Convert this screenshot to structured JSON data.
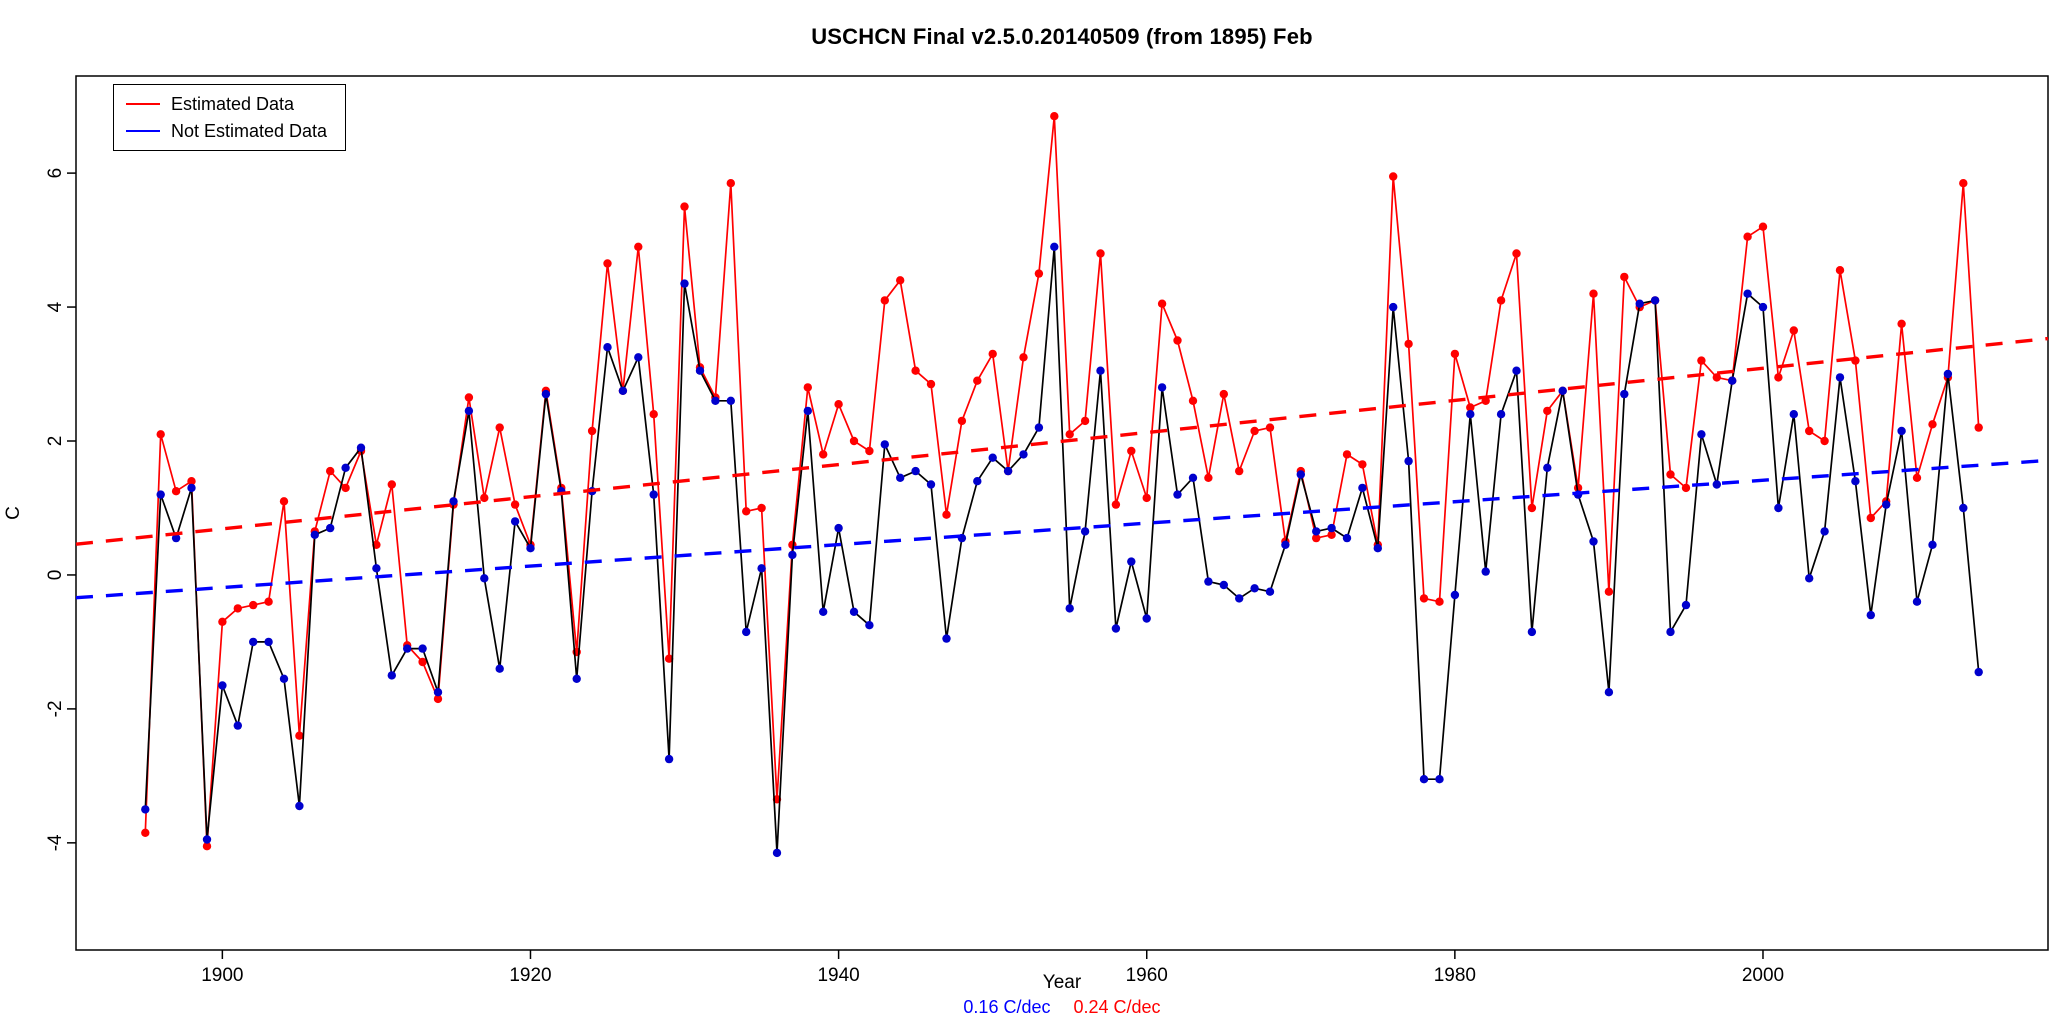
{
  "title": "USCHCN Final v2.5.0.20140509 (from 1895) Feb",
  "axes": {
    "xlabel": "Year",
    "ylabel": "C"
  },
  "legend": {
    "items": [
      {
        "label": "Estimated Data",
        "color": "#FF0000"
      },
      {
        "label": "Not Estimated Data",
        "color": "#0000FF"
      }
    ]
  },
  "annotation": {
    "not_estimated": "0.16 C/dec",
    "estimated": "0.24 C/dec",
    "not_estimated_color": "#0000FF",
    "estimated_color": "#FF0000"
  },
  "chart_data": {
    "type": "line",
    "title": "USCHCN Final v2.5.0.20140509 (from 1895) Feb",
    "xlabel": "Year",
    "ylabel": "C",
    "grid": false,
    "legend_position": "top-left",
    "xlim": [
      1890.5,
      2018.5
    ],
    "ylim": [
      -5.6,
      7.45
    ],
    "xticks": [
      1900,
      1920,
      1940,
      1960,
      1980,
      2000
    ],
    "yticks": [
      -4,
      -2,
      0,
      2,
      4,
      6
    ],
    "years": [
      1895,
      1896,
      1897,
      1898,
      1899,
      1900,
      1901,
      1902,
      1903,
      1904,
      1905,
      1906,
      1907,
      1908,
      1909,
      1910,
      1911,
      1912,
      1913,
      1914,
      1915,
      1916,
      1917,
      1918,
      1919,
      1920,
      1921,
      1922,
      1923,
      1924,
      1925,
      1926,
      1927,
      1928,
      1929,
      1930,
      1931,
      1932,
      1933,
      1934,
      1935,
      1936,
      1937,
      1938,
      1939,
      1940,
      1941,
      1942,
      1943,
      1944,
      1945,
      1946,
      1947,
      1948,
      1949,
      1950,
      1951,
      1952,
      1953,
      1954,
      1955,
      1956,
      1957,
      1958,
      1959,
      1960,
      1961,
      1962,
      1963,
      1964,
      1965,
      1966,
      1967,
      1968,
      1969,
      1970,
      1971,
      1972,
      1973,
      1974,
      1975,
      1976,
      1977,
      1978,
      1979,
      1980,
      1981,
      1982,
      1983,
      1984,
      1985,
      1986,
      1987,
      1988,
      1989,
      1990,
      1991,
      1992,
      1993,
      1994,
      1995,
      1996,
      1997,
      1998,
      1999,
      2000,
      2001,
      2002,
      2003,
      2004,
      2005,
      2006,
      2007,
      2008,
      2009,
      2010,
      2011,
      2012,
      2013,
      2014
    ],
    "series": [
      {
        "id": "estimated",
        "name": "Estimated Data",
        "line_color": "#FF0000",
        "marker_color": "#FF0000",
        "values": [
          -3.85,
          2.1,
          1.25,
          1.4,
          -4.05,
          -0.7,
          -0.5,
          -0.45,
          -0.4,
          1.1,
          -2.4,
          0.65,
          1.55,
          1.3,
          1.85,
          0.45,
          1.35,
          -1.05,
          -1.3,
          -1.85,
          1.05,
          2.65,
          1.15,
          2.2,
          1.05,
          0.45,
          2.75,
          1.3,
          -1.15,
          2.15,
          4.65,
          2.75,
          4.9,
          2.4,
          -1.25,
          5.5,
          3.1,
          2.65,
          5.85,
          0.95,
          1.0,
          -3.35,
          0.45,
          2.8,
          1.8,
          2.55,
          2.0,
          1.85,
          4.1,
          4.4,
          3.05,
          2.85,
          0.9,
          2.3,
          2.9,
          3.3,
          1.55,
          3.25,
          4.5,
          6.85,
          2.1,
          2.3,
          4.8,
          1.05,
          1.85,
          1.15,
          4.05,
          3.5,
          2.6,
          1.45,
          2.7,
          1.55,
          2.15,
          2.2,
          0.5,
          1.55,
          0.55,
          0.6,
          1.8,
          1.65,
          0.45,
          5.95,
          3.45,
          -0.35,
          -0.4,
          3.3,
          2.5,
          2.6,
          4.1,
          4.8,
          1.0,
          2.45,
          2.75,
          1.3,
          4.2,
          -0.25,
          4.45,
          4.0,
          4.1,
          1.5,
          1.3,
          3.2,
          2.95,
          2.9,
          5.05,
          5.2,
          2.95,
          3.65,
          2.15,
          2.0,
          4.55,
          3.2,
          0.85,
          1.1,
          3.75,
          1.45,
          2.25,
          2.95,
          5.85,
          2.2
        ]
      },
      {
        "id": "not-estimated",
        "name": "Not Estimated Data",
        "line_color": "#000000",
        "marker_color": "#0000CD",
        "values": [
          -3.5,
          1.2,
          0.55,
          1.3,
          -3.95,
          -1.65,
          -2.25,
          -1.0,
          -1.0,
          -1.55,
          -3.45,
          0.6,
          0.7,
          1.6,
          1.9,
          0.1,
          -1.5,
          -1.1,
          -1.1,
          -1.75,
          1.1,
          2.45,
          -0.05,
          -1.4,
          0.8,
          0.4,
          2.7,
          1.25,
          -1.55,
          1.25,
          3.4,
          2.75,
          3.25,
          1.2,
          -2.75,
          4.35,
          3.05,
          2.6,
          2.6,
          -0.85,
          0.1,
          -4.15,
          0.3,
          2.45,
          -0.55,
          0.7,
          -0.55,
          -0.75,
          1.95,
          1.45,
          1.55,
          1.35,
          -0.95,
          0.55,
          1.4,
          1.75,
          1.55,
          1.8,
          2.2,
          4.9,
          -0.5,
          0.65,
          3.05,
          -0.8,
          0.2,
          -0.65,
          2.8,
          1.2,
          1.45,
          -0.1,
          -0.15,
          -0.35,
          -0.2,
          -0.25,
          0.45,
          1.5,
          0.65,
          0.7,
          0.55,
          1.3,
          0.4,
          4.0,
          1.7,
          -3.05,
          -3.05,
          -0.3,
          2.4,
          0.05,
          2.4,
          3.05,
          -0.85,
          1.6,
          2.75,
          1.2,
          0.5,
          -1.75,
          2.7,
          4.05,
          4.1,
          -0.85,
          -0.45,
          2.1,
          1.35,
          2.9,
          4.2,
          4.0,
          1.0,
          2.4,
          -0.05,
          0.65,
          2.95,
          1.4,
          -0.6,
          1.05,
          2.15,
          -0.4,
          0.45,
          3.0,
          1.0,
          -1.45
        ]
      }
    ],
    "trend_lines": [
      {
        "id": "not-estimated-trend-line",
        "name": "Not Estimated trend",
        "slope_c_per_decade": 0.16,
        "label": "0.16 C/dec",
        "color": "#0000FF",
        "x": [
          1890.5,
          2018.5
        ],
        "y": [
          -0.34,
          1.71
        ]
      },
      {
        "id": "estimated-trend-line",
        "name": "Estimated trend",
        "slope_c_per_decade": 0.24,
        "label": "0.24 C/dec",
        "color": "#FF0000",
        "x": [
          1890.5,
          2018.5
        ],
        "y": [
          0.46,
          3.53
        ]
      }
    ]
  }
}
